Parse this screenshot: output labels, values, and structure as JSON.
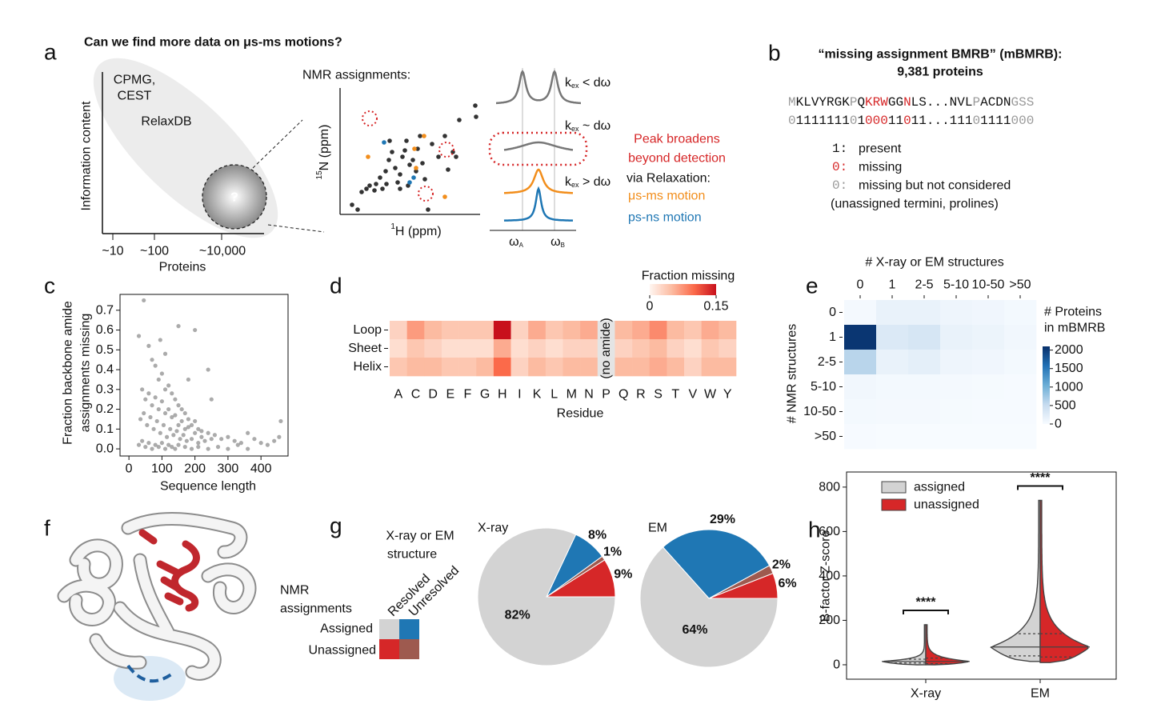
{
  "a": {
    "label": "a",
    "title": "Can we find more data on μs-ms motions?",
    "y_label": "Information content",
    "x_label": "Proteins",
    "x_ticks": [
      "~10",
      "~100",
      "~10,000"
    ],
    "methods": [
      "CPMG,",
      "CEST"
    ],
    "database": "RelaxDB",
    "unknown": "?",
    "nmr_title": "NMR assignments:",
    "nmr_y_label": {
      "sup": "15",
      "text": "N (ppm)"
    },
    "nmr_x_label": {
      "sup": "1",
      "text": "H (ppm)"
    },
    "regimes": [
      {
        "k": "k",
        "sub": "ex",
        "rest": " < dω"
      },
      {
        "k": "k",
        "sub": "ex",
        "rest": " ~ dω"
      },
      {
        "k": "k",
        "sub": "ex",
        "rest": " > dω"
      }
    ],
    "frequencies": [
      {
        "base": "ω",
        "sub": "A"
      },
      {
        "base": "ω",
        "sub": "B"
      }
    ],
    "broadening": [
      "Peak broadens",
      "beyond detection"
    ],
    "relaxation": "via Relaxation:",
    "motions": [
      {
        "name": "μs-ms motion",
        "color": "#f28e1c"
      },
      {
        "name": "ps-ns motion",
        "color": "#1f77b4"
      }
    ]
  },
  "b": {
    "label": "b",
    "title": [
      "“missing assignment BMRB” (mBMRB):",
      "9,381 proteins"
    ],
    "segments": [
      {
        "text": "M",
        "digits": "0",
        "color": "#999999"
      },
      {
        "text": "KLVYRGK",
        "digits": "1111111",
        "color": "#111111"
      },
      {
        "text": "P",
        "digits": "0",
        "color": "#999999"
      },
      {
        "text": "Q",
        "digits": "1",
        "color": "#111111"
      },
      {
        "text": "KRW",
        "digits": "000",
        "color": "#d62728"
      },
      {
        "text": "GG",
        "digits": "11",
        "color": "#111111"
      },
      {
        "text": "N",
        "digits": "0",
        "color": "#d62728"
      },
      {
        "text": "LS...NVL",
        "digits": "11...111",
        "color": "#111111"
      },
      {
        "text": "P",
        "digits": "0",
        "color": "#999999"
      },
      {
        "text": "ACDN",
        "digits": "1111",
        "color": "#111111"
      },
      {
        "text": "GSS",
        "digits": "000",
        "color": "#999999"
      }
    ],
    "legend": [
      {
        "key": "1:",
        "text": "present",
        "color": "#111111"
      },
      {
        "key": "0:",
        "text": "missing",
        "color": "#d62728"
      },
      {
        "key": "0:",
        "text": "missing but not considered",
        "color": "#999999"
      }
    ],
    "note": "(unassigned termini, prolines)"
  },
  "c": {
    "label": "c",
    "type": "scatter",
    "y_label": [
      "Fraction backbone amide",
      "assignments missing"
    ],
    "x_label": "Sequence length",
    "color": "#444444",
    "x": [
      30,
      45,
      60,
      70,
      80,
      90,
      100,
      110,
      120,
      130,
      140,
      150,
      160,
      170,
      180,
      190,
      200,
      210,
      220,
      240,
      260,
      280,
      300,
      320,
      340,
      360,
      380,
      400,
      420,
      440,
      460,
      455,
      40,
      50,
      60,
      70,
      80,
      90,
      100,
      110,
      120,
      130,
      140,
      150,
      160,
      170,
      180,
      200,
      220,
      250,
      35,
      45,
      55,
      65,
      75,
      85,
      95,
      105,
      115,
      125,
      135,
      145,
      155,
      165,
      175,
      190,
      210,
      230,
      30,
      40,
      50,
      60,
      70,
      80,
      90,
      100,
      110,
      120,
      130,
      140,
      150,
      170,
      190,
      210,
      240,
      270,
      300,
      330,
      360,
      150,
      200,
      110,
      95,
      250,
      240,
      180
    ],
    "y": [
      0.57,
      0.75,
      0.52,
      0.45,
      0.42,
      0.35,
      0.38,
      0.3,
      0.32,
      0.28,
      0.25,
      0.22,
      0.2,
      0.18,
      0.15,
      0.12,
      0.14,
      0.1,
      0.09,
      0.08,
      0.07,
      0.05,
      0.06,
      0.04,
      0.03,
      0.08,
      0.05,
      0.03,
      0.02,
      0.04,
      0.14,
      0.06,
      0.3,
      0.25,
      0.28,
      0.22,
      0.26,
      0.2,
      0.24,
      0.18,
      0.2,
      0.16,
      0.17,
      0.12,
      0.14,
      0.1,
      0.11,
      0.08,
      0.06,
      0.05,
      0.15,
      0.18,
      0.12,
      0.16,
      0.1,
      0.14,
      0.08,
      0.12,
      0.06,
      0.1,
      0.07,
      0.09,
      0.05,
      0.07,
      0.04,
      0.05,
      0.03,
      0.04,
      0.02,
      0.04,
      0.01,
      0.03,
      0,
      0.02,
      0.01,
      0.03,
      0,
      0.02,
      0.01,
      0,
      0.02,
      0.01,
      0,
      0.01,
      0,
      0.01,
      0,
      0.02,
      0,
      0.62,
      0.6,
      0.48,
      0.55,
      0.25,
      0.4,
      0.35
    ],
    "xlim": [
      -27,
      482
    ],
    "ylim": [
      -0.036,
      0.78
    ],
    "xticks": [
      0,
      100,
      200,
      300,
      400
    ],
    "yticks": [
      {
        "value": 0,
        "label": "0.0"
      },
      0.1,
      0.2,
      0.3,
      0.4,
      0.5,
      0.6,
      0.7
    ]
  },
  "d": {
    "label": "d",
    "type": "heatmap",
    "rows": [
      "Loop",
      "Sheet",
      "Helix"
    ],
    "columns": [
      "A",
      "C",
      "D",
      "E",
      "F",
      "G",
      "H",
      "I",
      "K",
      "L",
      "M",
      "N",
      "P",
      "Q",
      "R",
      "S",
      "T",
      "V",
      "W",
      "Y"
    ],
    "values": [
      [
        0.03,
        0.07,
        0.05,
        0.04,
        0.04,
        0.04,
        0.15,
        0.03,
        0.06,
        0.04,
        0.05,
        0.06,
        null,
        0.05,
        0.06,
        0.08,
        0.05,
        0.04,
        0.06,
        0.05
      ],
      [
        0.02,
        0.04,
        0.03,
        0.02,
        0.02,
        0.02,
        0.06,
        0.02,
        0.03,
        0.02,
        0.03,
        0.03,
        null,
        0.03,
        0.04,
        0.05,
        0.03,
        0.02,
        0.04,
        0.03
      ],
      [
        0.04,
        0.05,
        0.05,
        0.04,
        0.04,
        0.05,
        0.1,
        0.03,
        0.05,
        0.04,
        0.05,
        0.05,
        null,
        0.05,
        0.05,
        0.06,
        0.05,
        0.03,
        0.05,
        0.05
      ]
    ],
    "x_label": "Residue",
    "null_label": "(no amide)",
    "colorbar_label": "Fraction missing",
    "clim": [
      0,
      0.15
    ],
    "colorbar_ticks": [
      0,
      0.15
    ],
    "colormap": [
      "#fff5f0",
      "#fcbba1",
      "#fb6a4a",
      "#c8101c"
    ]
  },
  "e": {
    "label": "e",
    "type": "heatmap",
    "x_label": "# X-ray or EM structures",
    "y_label": "# NMR structures",
    "columns": [
      "0",
      "1",
      "2-5",
      "5-10",
      "10-50",
      ">50"
    ],
    "rows": [
      "0",
      "1",
      "2-5",
      "5-10",
      "10-50",
      ">50"
    ],
    "values": [
      [
        30,
        150,
        150,
        100,
        80,
        40
      ],
      [
        2050,
        300,
        350,
        150,
        120,
        60
      ],
      [
        600,
        150,
        200,
        100,
        80,
        40
      ],
      [
        60,
        40,
        40,
        30,
        20,
        10
      ],
      [
        40,
        30,
        30,
        20,
        15,
        10
      ],
      [
        10,
        5,
        5,
        5,
        5,
        5
      ]
    ],
    "colorbar_label": [
      "# Proteins",
      "in mBMRB"
    ],
    "clim": [
      0,
      2100
    ],
    "colorbar_ticks": [
      0,
      500,
      1000,
      1500,
      2000
    ],
    "colormap": [
      "#f7fbff",
      "#c6dbef",
      "#6baed6",
      "#2171b5",
      "#08306b"
    ]
  },
  "f": {
    "label": "f"
  },
  "g": {
    "label": "g",
    "legend": {
      "column_title": [
        "X-ray or EM",
        "structure"
      ],
      "row_title": [
        "NMR",
        "assignments"
      ],
      "columns": [
        "Resolved",
        "Unresolved"
      ],
      "rows": [
        "Assigned",
        "Unassigned"
      ],
      "colors": [
        [
          "#d3d3d3",
          "#1f77b4"
        ],
        [
          "#d62728",
          "#9e5a4f"
        ]
      ]
    },
    "pies": [
      {
        "type": "pie",
        "title": "X-ray",
        "values": [
          9,
          1,
          8,
          82
        ],
        "value_labels": [
          "9%",
          "1%",
          "8%",
          "82%"
        ],
        "colors": [
          "#d62728",
          "#9e5a4f",
          "#1f77b4",
          "#d3d3d3"
        ]
      },
      {
        "type": "pie",
        "title": "EM",
        "values": [
          6,
          2,
          29,
          64
        ],
        "value_labels": [
          "6%",
          "2%",
          "29%",
          "64%"
        ],
        "colors": [
          "#d62728",
          "#9e5a4f",
          "#1f77b4",
          "#d3d3d3"
        ]
      }
    ]
  },
  "h": {
    "label": "h",
    "type": "violin",
    "y_label": "B-factor Z-score",
    "categories": [
      "X-ray",
      "EM"
    ],
    "series": [
      {
        "name": "assigned",
        "color": "#d3d3d3",
        "min": [
          0,
          15
        ],
        "q1": [
          8,
          40
        ],
        "median": [
          15,
          80
        ],
        "q3": [
          25,
          140
        ],
        "max": [
          180,
          740
        ]
      },
      {
        "name": "unassigned",
        "color": "#d62728",
        "min": [
          0,
          10
        ],
        "q1": [
          5,
          35
        ],
        "median": [
          15,
          80
        ],
        "q3": [
          30,
          140
        ],
        "max": [
          180,
          740
        ]
      }
    ],
    "ylim": [
      -65,
      868
    ],
    "yticks": [
      0,
      200,
      400,
      600,
      800
    ],
    "significance": [
      "****",
      "****"
    ],
    "legend": "upper left"
  }
}
